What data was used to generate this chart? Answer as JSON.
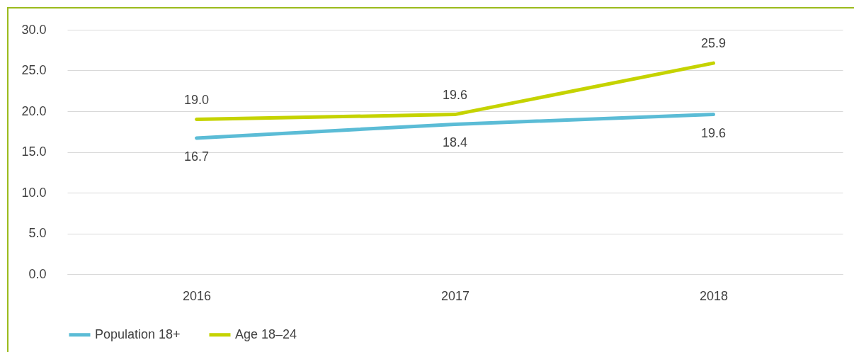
{
  "chart_data": {
    "type": "line",
    "categories": [
      "2016",
      "2017",
      "2018"
    ],
    "series": [
      {
        "name": "Population 18+",
        "color": "#5bbcd6",
        "values": [
          16.7,
          18.4,
          19.6
        ],
        "value_labels": [
          "16.7",
          "18.4",
          "19.6"
        ]
      },
      {
        "name": "Age 18–24",
        "color": "#c5d300",
        "values": [
          19.0,
          19.6,
          25.9
        ],
        "value_labels": [
          "19.0",
          "19.6",
          "25.9"
        ]
      }
    ],
    "ylim": [
      0,
      30
    ],
    "yticks": [
      {
        "value": 0,
        "label": "0.0"
      },
      {
        "value": 5,
        "label": "5.0"
      },
      {
        "value": 10,
        "label": "10.0"
      },
      {
        "value": 15,
        "label": "15.0"
      },
      {
        "value": 20,
        "label": "20.0"
      },
      {
        "value": 25,
        "label": "25.0"
      },
      {
        "value": 30,
        "label": "30.0"
      }
    ],
    "grid": "y",
    "legend": "bottom"
  }
}
